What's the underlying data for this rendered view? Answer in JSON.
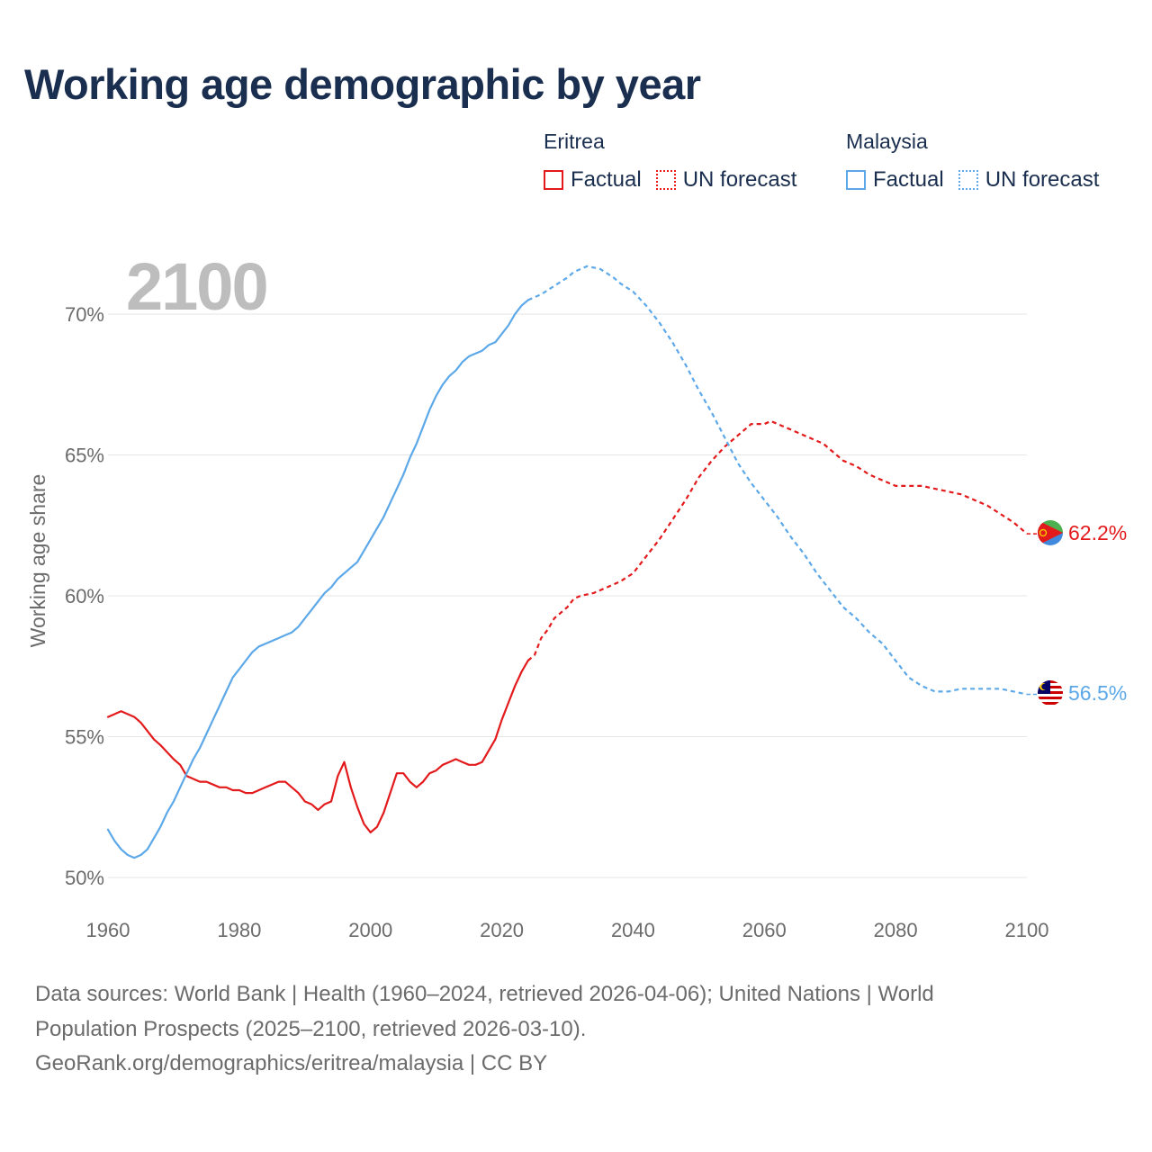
{
  "title": "Working age demographic by year",
  "year_label": "2100",
  "legend": [
    {
      "country": "Eritrea",
      "color": "#e31a1c",
      "factual": "Factual",
      "forecast": "UN forecast"
    },
    {
      "country": "Malaysia",
      "color": "#5ca8e8",
      "factual": "Factual",
      "forecast": "UN forecast"
    }
  ],
  "footer": {
    "line1": "Data sources: World Bank | Health (1960–2024, retrieved 2026-04-06); United Nations | World",
    "line2": "Population Prospects (2025–2100, retrieved 2026-03-10).",
    "line3": "GeoRank.org/demographics/eritrea/malaysia | CC BY"
  },
  "chart_data": {
    "type": "line",
    "title": "Working age demographic by year",
    "xlabel": "",
    "ylabel": "Working age share",
    "xlim": [
      1960,
      2100
    ],
    "ylim": [
      50,
      72
    ],
    "x_ticks": [
      1960,
      1980,
      2000,
      2020,
      2040,
      2060,
      2080,
      2100
    ],
    "y_ticks": [
      50,
      55,
      60,
      65,
      70
    ],
    "y_tick_labels": [
      "50%",
      "55%",
      "60%",
      "65%",
      "70%"
    ],
    "grid": true,
    "forecast_start": 2025,
    "series": [
      {
        "name": "Eritrea",
        "color": "#e31a1c",
        "flag": "eritrea-flag-icon",
        "end_label": "62.2%",
        "points": [
          [
            1960,
            55.7
          ],
          [
            1962,
            55.9
          ],
          [
            1964,
            55.7
          ],
          [
            1965,
            55.5
          ],
          [
            1967,
            54.9
          ],
          [
            1968,
            54.7
          ],
          [
            1970,
            54.2
          ],
          [
            1971,
            54.0
          ],
          [
            1972,
            53.6
          ],
          [
            1974,
            53.4
          ],
          [
            1975,
            53.4
          ],
          [
            1977,
            53.2
          ],
          [
            1978,
            53.2
          ],
          [
            1979,
            53.1
          ],
          [
            1980,
            53.1
          ],
          [
            1981,
            53.0
          ],
          [
            1982,
            53.0
          ],
          [
            1984,
            53.2
          ],
          [
            1986,
            53.4
          ],
          [
            1987,
            53.4
          ],
          [
            1989,
            53.0
          ],
          [
            1990,
            52.7
          ],
          [
            1991,
            52.6
          ],
          [
            1992,
            52.4
          ],
          [
            1993,
            52.6
          ],
          [
            1994,
            52.7
          ],
          [
            1995,
            53.6
          ],
          [
            1996,
            54.1
          ],
          [
            1997,
            53.2
          ],
          [
            1998,
            52.5
          ],
          [
            1999,
            51.9
          ],
          [
            2000,
            51.6
          ],
          [
            2001,
            51.8
          ],
          [
            2002,
            52.3
          ],
          [
            2003,
            53.0
          ],
          [
            2004,
            53.7
          ],
          [
            2005,
            53.7
          ],
          [
            2006,
            53.4
          ],
          [
            2007,
            53.2
          ],
          [
            2008,
            53.4
          ],
          [
            2009,
            53.7
          ],
          [
            2010,
            53.8
          ],
          [
            2011,
            54.0
          ],
          [
            2012,
            54.1
          ],
          [
            2013,
            54.2
          ],
          [
            2014,
            54.1
          ],
          [
            2015,
            54.0
          ],
          [
            2016,
            54.0
          ],
          [
            2017,
            54.1
          ],
          [
            2018,
            54.5
          ],
          [
            2019,
            54.9
          ],
          [
            2020,
            55.6
          ],
          [
            2021,
            56.2
          ],
          [
            2022,
            56.8
          ],
          [
            2023,
            57.3
          ],
          [
            2024,
            57.7
          ],
          [
            2025,
            57.9
          ],
          [
            2026,
            58.5
          ],
          [
            2027,
            58.8
          ],
          [
            2028,
            59.2
          ],
          [
            2030,
            59.6
          ],
          [
            2031,
            59.9
          ],
          [
            2032,
            60.0
          ],
          [
            2034,
            60.1
          ],
          [
            2036,
            60.3
          ],
          [
            2038,
            60.5
          ],
          [
            2040,
            60.8
          ],
          [
            2042,
            61.4
          ],
          [
            2044,
            62.0
          ],
          [
            2046,
            62.7
          ],
          [
            2048,
            63.4
          ],
          [
            2050,
            64.2
          ],
          [
            2052,
            64.8
          ],
          [
            2054,
            65.3
          ],
          [
            2056,
            65.7
          ],
          [
            2058,
            66.1
          ],
          [
            2060,
            66.1
          ],
          [
            2061,
            66.2
          ],
          [
            2064,
            65.9
          ],
          [
            2066,
            65.7
          ],
          [
            2069,
            65.4
          ],
          [
            2072,
            64.8
          ],
          [
            2074,
            64.6
          ],
          [
            2076,
            64.3
          ],
          [
            2078,
            64.1
          ],
          [
            2080,
            63.9
          ],
          [
            2082,
            63.9
          ],
          [
            2084,
            63.9
          ],
          [
            2086,
            63.8
          ],
          [
            2088,
            63.7
          ],
          [
            2090,
            63.6
          ],
          [
            2092,
            63.4
          ],
          [
            2094,
            63.2
          ],
          [
            2096,
            62.9
          ],
          [
            2098,
            62.6
          ],
          [
            2100,
            62.2
          ]
        ]
      },
      {
        "name": "Malaysia",
        "color": "#5ca8e8",
        "flag": "malaysia-flag-icon",
        "end_label": "56.5%",
        "points": [
          [
            1960,
            51.7
          ],
          [
            1961,
            51.3
          ],
          [
            1962,
            51.0
          ],
          [
            1963,
            50.8
          ],
          [
            1964,
            50.7
          ],
          [
            1965,
            50.8
          ],
          [
            1966,
            51.0
          ],
          [
            1967,
            51.4
          ],
          [
            1968,
            51.8
          ],
          [
            1969,
            52.3
          ],
          [
            1970,
            52.7
          ],
          [
            1971,
            53.2
          ],
          [
            1972,
            53.7
          ],
          [
            1973,
            54.2
          ],
          [
            1974,
            54.6
          ],
          [
            1975,
            55.1
          ],
          [
            1976,
            55.6
          ],
          [
            1977,
            56.1
          ],
          [
            1978,
            56.6
          ],
          [
            1979,
            57.1
          ],
          [
            1980,
            57.4
          ],
          [
            1981,
            57.7
          ],
          [
            1982,
            58.0
          ],
          [
            1983,
            58.2
          ],
          [
            1984,
            58.3
          ],
          [
            1985,
            58.4
          ],
          [
            1986,
            58.5
          ],
          [
            1987,
            58.6
          ],
          [
            1988,
            58.7
          ],
          [
            1989,
            58.9
          ],
          [
            1990,
            59.2
          ],
          [
            1991,
            59.5
          ],
          [
            1992,
            59.8
          ],
          [
            1993,
            60.1
          ],
          [
            1994,
            60.3
          ],
          [
            1995,
            60.6
          ],
          [
            1996,
            60.8
          ],
          [
            1997,
            61.0
          ],
          [
            1998,
            61.2
          ],
          [
            1999,
            61.6
          ],
          [
            2000,
            62.0
          ],
          [
            2001,
            62.4
          ],
          [
            2002,
            62.8
          ],
          [
            2003,
            63.3
          ],
          [
            2004,
            63.8
          ],
          [
            2005,
            64.3
          ],
          [
            2006,
            64.9
          ],
          [
            2007,
            65.4
          ],
          [
            2008,
            66.0
          ],
          [
            2009,
            66.6
          ],
          [
            2010,
            67.1
          ],
          [
            2011,
            67.5
          ],
          [
            2012,
            67.8
          ],
          [
            2013,
            68.0
          ],
          [
            2014,
            68.3
          ],
          [
            2015,
            68.5
          ],
          [
            2016,
            68.6
          ],
          [
            2017,
            68.7
          ],
          [
            2018,
            68.9
          ],
          [
            2019,
            69.0
          ],
          [
            2020,
            69.3
          ],
          [
            2021,
            69.6
          ],
          [
            2022,
            70.0
          ],
          [
            2023,
            70.3
          ],
          [
            2024,
            70.5
          ],
          [
            2025,
            70.6
          ],
          [
            2026,
            70.7
          ],
          [
            2028,
            71.0
          ],
          [
            2030,
            71.3
          ],
          [
            2031,
            71.5
          ],
          [
            2033,
            71.7
          ],
          [
            2035,
            71.6
          ],
          [
            2037,
            71.3
          ],
          [
            2038,
            71.1
          ],
          [
            2040,
            70.8
          ],
          [
            2042,
            70.3
          ],
          [
            2044,
            69.7
          ],
          [
            2046,
            69.0
          ],
          [
            2048,
            68.2
          ],
          [
            2050,
            67.3
          ],
          [
            2052,
            66.5
          ],
          [
            2054,
            65.6
          ],
          [
            2056,
            64.7
          ],
          [
            2058,
            64.0
          ],
          [
            2060,
            63.4
          ],
          [
            2062,
            62.8
          ],
          [
            2064,
            62.1
          ],
          [
            2066,
            61.5
          ],
          [
            2068,
            60.8
          ],
          [
            2070,
            60.2
          ],
          [
            2072,
            59.6
          ],
          [
            2074,
            59.2
          ],
          [
            2076,
            58.7
          ],
          [
            2078,
            58.3
          ],
          [
            2080,
            57.7
          ],
          [
            2082,
            57.1
          ],
          [
            2084,
            56.8
          ],
          [
            2086,
            56.6
          ],
          [
            2088,
            56.6
          ],
          [
            2090,
            56.7
          ],
          [
            2094,
            56.7
          ],
          [
            2096,
            56.7
          ],
          [
            2098,
            56.6
          ],
          [
            2100,
            56.5
          ]
        ]
      }
    ]
  }
}
